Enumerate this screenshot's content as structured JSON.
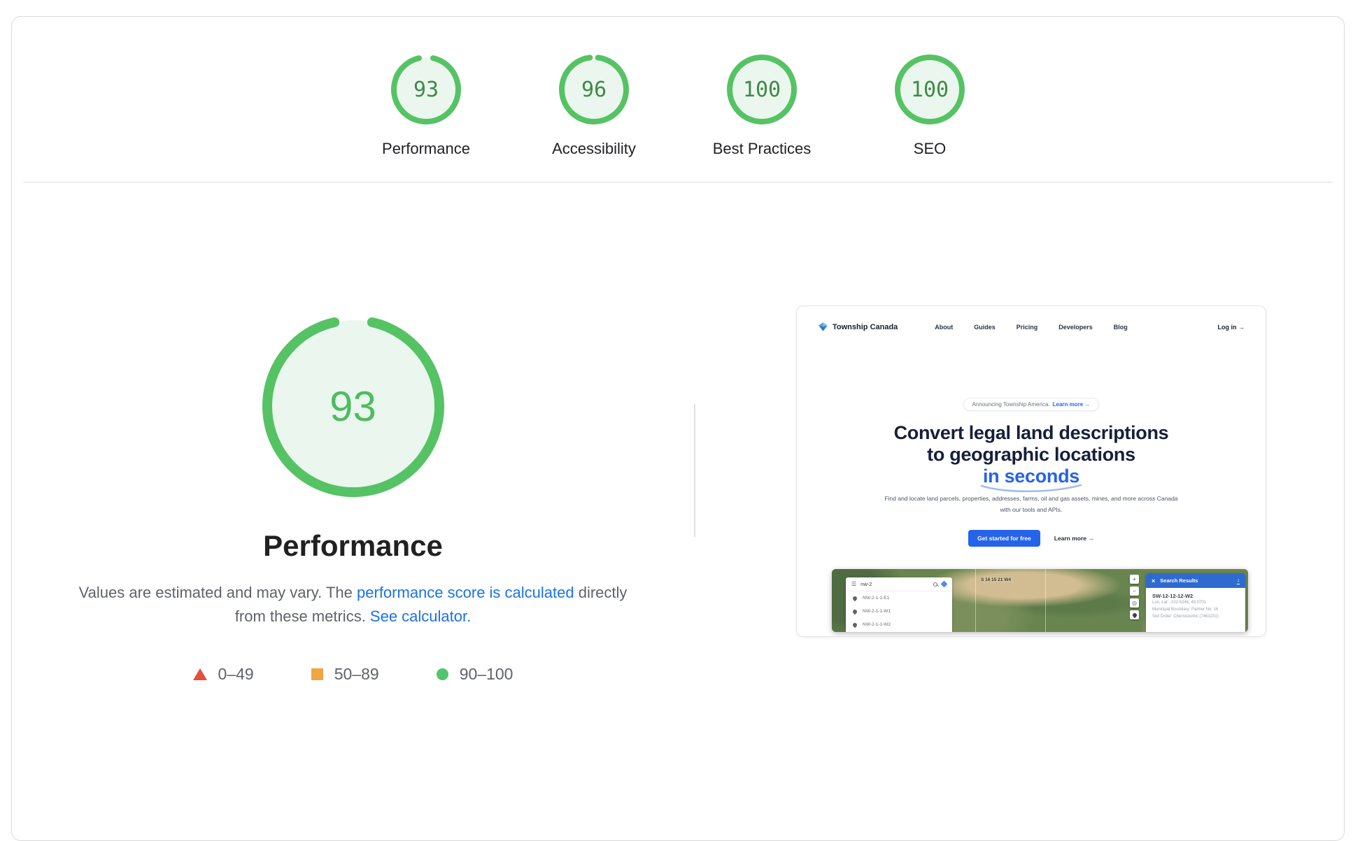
{
  "colors": {
    "arc": "#55c364",
    "gauge_fill": "#ebf7ee",
    "score_small": "#3f8a46",
    "score_big": "#4fbc5f",
    "legend_red": "#e74c3c",
    "legend_orange": "#f0a642",
    "legend_green": "#52c56a",
    "link_blue": "#1a73e8",
    "brand_blue": "#2563eb"
  },
  "summary": {
    "items": [
      {
        "label": "Performance",
        "score": "93"
      },
      {
        "label": "Accessibility",
        "score": "96"
      },
      {
        "label": "Best Practices",
        "score": "100"
      },
      {
        "label": "SEO",
        "score": "100"
      }
    ]
  },
  "detail": {
    "score": "93",
    "title": "Performance",
    "desc_1": "Values are estimated and may vary. The ",
    "desc_link_1": "performance score is calculated",
    "desc_2": " directly from these metrics. ",
    "desc_link_2": "See calculator.",
    "legend": [
      {
        "label": "0–49"
      },
      {
        "label": "50–89"
      },
      {
        "label": "90–100"
      }
    ]
  },
  "site_preview": {
    "nav": {
      "brand": "Township Canada",
      "links": [
        "About",
        "Guides",
        "Pricing",
        "Developers",
        "Blog"
      ],
      "login": "Log in →"
    },
    "announcement": {
      "text": "Announcing Township America.",
      "link": "Learn more →"
    },
    "hero": {
      "line1": "Convert legal land descriptions",
      "line2": "to geographic locations",
      "line3": "in seconds"
    },
    "subtext": {
      "line1": "Find and locate land parcels, properties, addresses, farms, oil and gas assets, mines, and more across Canada",
      "line2": "with our tools and APIs."
    },
    "cta": {
      "primary": "Get started for free",
      "secondary": "Learn more →"
    },
    "map": {
      "search_value": "nw-2",
      "suggestions": [
        "NW-2-1-1-E1",
        "NW-2-1-1-W1",
        "NW-2-1-1-W2"
      ],
      "parcel_label": "S 16 15 21 W4",
      "zoom_in": "+",
      "zoom_out": "−",
      "locate": "◎",
      "results": {
        "close": "×",
        "header": "Search Results",
        "title": "SW-12-12-12-W2",
        "line1": "Lon, Lat: -102.5246, 49.9701",
        "line2": "Municipal Boundary: Palmer No. 16",
        "line3": "Soil Order: Chernozemic (7463231)"
      }
    }
  }
}
